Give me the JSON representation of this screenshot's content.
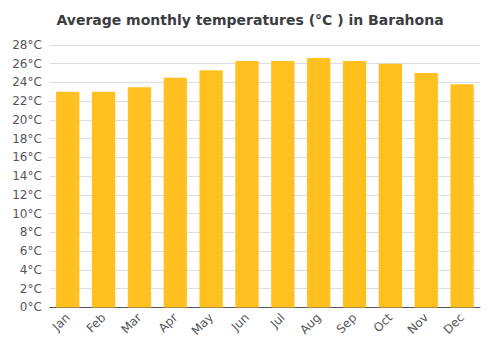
{
  "chart_data": {
    "type": "bar",
    "title": "Average monthly temperatures (°C ) in Barahona",
    "categories": [
      "Jan",
      "Feb",
      "Mar",
      "Apr",
      "May",
      "Jun",
      "Jul",
      "Aug",
      "Sep",
      "Oct",
      "Nov",
      "Dec"
    ],
    "values": [
      23.0,
      23.0,
      23.5,
      24.5,
      25.3,
      26.3,
      26.3,
      26.6,
      26.3,
      26.0,
      25.0,
      23.8
    ],
    "color": "#FFC020",
    "ylim": [
      0,
      28
    ],
    "yticks": [
      {
        "value": 0,
        "label": "0°C"
      },
      {
        "value": 2,
        "label": "2°C"
      },
      {
        "value": 4,
        "label": "4°C"
      },
      {
        "value": 6,
        "label": "6°C"
      },
      {
        "value": 8,
        "label": "8°C"
      },
      {
        "value": 10,
        "label": "10°C"
      },
      {
        "value": 12,
        "label": "12°C"
      },
      {
        "value": 14,
        "label": "14°C"
      },
      {
        "value": 16,
        "label": "16°C"
      },
      {
        "value": 18,
        "label": "18°C"
      },
      {
        "value": 20,
        "label": "20°C"
      },
      {
        "value": 22,
        "label": "22°C"
      },
      {
        "value": 24,
        "label": "24°C"
      },
      {
        "value": 26,
        "label": "26°C"
      },
      {
        "value": 28,
        "label": "28°C"
      }
    ],
    "grid": true
  }
}
